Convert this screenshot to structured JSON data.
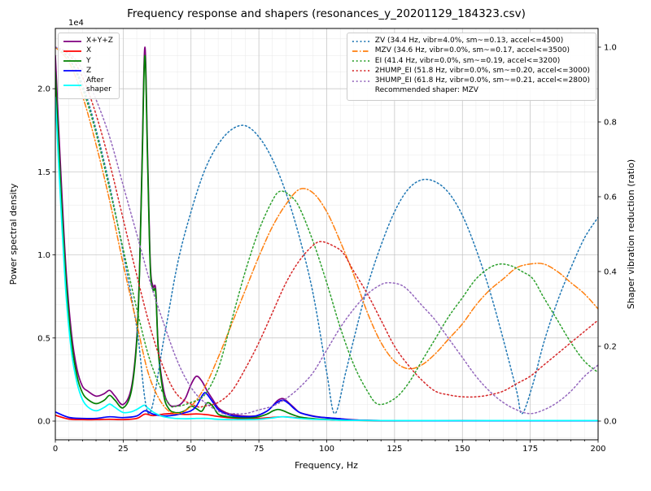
{
  "chart_data": {
    "type": "line",
    "title": "Frequency response and shapers (resonances_y_20201129_184323.csv)",
    "xlabel": "Frequency, Hz",
    "ylabel": "Power spectral density",
    "ylabel2": "Shaper vibration reduction (ratio)",
    "y_offset_text": "1e4",
    "xlim": [
      0,
      200
    ],
    "ylim_left": [
      -1125,
      23625
    ],
    "ylim_right": [
      -0.05,
      1.05
    ],
    "x_ticks": [
      0,
      25,
      50,
      75,
      100,
      125,
      150,
      175,
      200
    ],
    "y_ticks_left": {
      "values": [
        0,
        5000,
        10000,
        15000,
        20000
      ],
      "labels": [
        "0.0",
        "0.5",
        "1.0",
        "1.5",
        "2.0"
      ]
    },
    "y_ticks_right": {
      "values": [
        0,
        0.2,
        0.4,
        0.6,
        0.8,
        1.0
      ],
      "labels": [
        "0.0",
        "0.2",
        "0.4",
        "0.6",
        "0.8",
        "1.0"
      ]
    },
    "recommended_shaper_label": "Recommended shaper: MZV",
    "psd_series": [
      {
        "name": "X+Y+Z",
        "legend_label": "X+Y+Z",
        "color": "#800080",
        "style": "solid",
        "x": [
          0,
          2,
          4,
          6,
          8,
          10,
          12,
          15,
          18,
          20,
          22,
          25,
          28,
          30,
          31,
          32,
          33,
          34,
          35,
          36,
          37,
          38,
          40,
          42,
          44,
          46,
          48,
          50,
          52,
          54,
          56,
          58,
          60,
          63,
          66,
          70,
          74,
          78,
          80,
          82,
          84,
          86,
          88,
          90,
          93,
          96,
          100,
          104,
          108,
          112,
          116,
          120,
          130,
          140,
          150,
          160,
          170,
          180,
          190,
          200
        ],
        "y": [
          22000,
          15000,
          9000,
          5200,
          3100,
          2100,
          1800,
          1500,
          1650,
          1850,
          1500,
          1000,
          2000,
          5000,
          9000,
          16000,
          22500,
          16000,
          9500,
          8100,
          7900,
          4300,
          1800,
          1000,
          900,
          1000,
          1400,
          2200,
          2700,
          2400,
          1800,
          1300,
          800,
          500,
          380,
          300,
          320,
          600,
          900,
          1250,
          1350,
          1100,
          800,
          520,
          380,
          280,
          200,
          150,
          100,
          60,
          45,
          35,
          25,
          20,
          20,
          20,
          20,
          20,
          20,
          20
        ]
      },
      {
        "name": "X",
        "legend_label": "X",
        "color": "#ff0000",
        "style": "solid",
        "x": [
          0,
          5,
          10,
          15,
          20,
          25,
          30,
          33,
          36,
          40,
          44,
          48,
          52,
          56,
          60,
          65,
          70,
          75,
          80,
          84,
          88,
          92,
          96,
          100,
          105,
          110,
          120,
          140,
          160,
          180,
          200
        ],
        "y": [
          350,
          120,
          90,
          90,
          110,
          90,
          160,
          420,
          330,
          420,
          450,
          400,
          430,
          380,
          280,
          190,
          150,
          160,
          220,
          260,
          210,
          150,
          120,
          100,
          60,
          40,
          30,
          20,
          20,
          20,
          20
        ]
      },
      {
        "name": "Y",
        "legend_label": "Y",
        "color": "#008000",
        "style": "solid",
        "x": [
          0,
          2,
          4,
          6,
          8,
          10,
          12,
          15,
          18,
          20,
          22,
          25,
          28,
          30,
          31,
          32,
          33,
          34,
          35,
          36,
          37,
          38,
          40,
          42,
          44,
          46,
          48,
          50,
          52,
          54,
          56,
          58,
          60,
          63,
          66,
          70,
          74,
          78,
          80,
          82,
          84,
          86,
          88,
          90,
          93,
          96,
          100,
          104,
          108,
          112,
          116,
          120,
          130,
          140,
          150,
          160,
          170,
          180,
          190,
          200
        ],
        "y": [
          21000,
          14000,
          8300,
          4700,
          2700,
          1700,
          1300,
          1050,
          1250,
          1550,
          1250,
          800,
          1800,
          4800,
          8800,
          15500,
          22000,
          15500,
          9200,
          7900,
          7700,
          4100,
          1500,
          700,
          520,
          520,
          650,
          900,
          750,
          600,
          1100,
          900,
          420,
          280,
          220,
          200,
          230,
          420,
          600,
          700,
          620,
          480,
          350,
          250,
          180,
          130,
          100,
          70,
          50,
          40,
          35,
          30,
          25,
          20,
          20,
          20,
          20,
          20,
          20,
          20
        ]
      },
      {
        "name": "Z",
        "legend_label": "Z",
        "color": "#0000ff",
        "style": "solid",
        "x": [
          0,
          5,
          10,
          15,
          20,
          25,
          30,
          33,
          36,
          40,
          44,
          48,
          50,
          52,
          54,
          55,
          56,
          58,
          60,
          63,
          66,
          70,
          74,
          78,
          80,
          82,
          84,
          86,
          88,
          90,
          93,
          96,
          100,
          104,
          108,
          112,
          120,
          140,
          160,
          180,
          200
        ],
        "y": [
          550,
          220,
          160,
          160,
          260,
          210,
          310,
          620,
          420,
          310,
          360,
          520,
          620,
          900,
          1500,
          1700,
          1600,
          1150,
          700,
          420,
          300,
          260,
          310,
          600,
          900,
          1150,
          1250,
          1050,
          750,
          520,
          360,
          260,
          200,
          150,
          80,
          50,
          30,
          20,
          20,
          20,
          20
        ]
      },
      {
        "name": "After shaper",
        "legend_label": "After\nshaper",
        "color": "#00ffff",
        "style": "solid",
        "x": [
          0,
          2,
          4,
          6,
          8,
          10,
          12,
          15,
          18,
          20,
          22,
          25,
          28,
          30,
          32,
          33,
          34,
          36,
          38,
          40,
          44,
          48,
          52,
          56,
          60,
          65,
          70,
          75,
          80,
          83,
          86,
          90,
          95,
          100,
          105,
          110,
          120,
          140,
          160,
          180,
          200
        ],
        "y": [
          19500,
          13000,
          7500,
          4100,
          2300,
          1300,
          850,
          620,
          820,
          1020,
          820,
          520,
          560,
          700,
          900,
          950,
          800,
          550,
          380,
          260,
          160,
          140,
          160,
          160,
          110,
          90,
          90,
          110,
          190,
          260,
          230,
          160,
          110,
          85,
          55,
          45,
          35,
          28,
          28,
          28,
          28
        ]
      }
    ],
    "shaper_series": [
      {
        "name": "ZV",
        "legend_label": "ZV (34.4 Hz, vibr=4.0%, sm~=0.13, accel<=4500)",
        "color": "#1f77b4",
        "style": "dotted",
        "x": [
          0,
          5,
          10,
          15,
          20,
          25,
          30,
          34.4,
          40,
          45,
          50,
          55,
          60,
          65,
          70,
          75,
          80,
          85,
          90,
          95,
          100,
          103,
          107,
          110,
          115,
          120,
          125,
          130,
          135,
          140,
          145,
          150,
          155,
          160,
          165,
          170,
          172,
          176,
          180,
          185,
          190,
          195,
          200
        ],
        "y": [
          1.0,
          0.97,
          0.9,
          0.78,
          0.63,
          0.45,
          0.25,
          0.02,
          0.22,
          0.42,
          0.56,
          0.67,
          0.74,
          0.78,
          0.79,
          0.76,
          0.7,
          0.61,
          0.49,
          0.34,
          0.13,
          0.02,
          0.13,
          0.22,
          0.36,
          0.47,
          0.56,
          0.62,
          0.645,
          0.64,
          0.61,
          0.55,
          0.46,
          0.35,
          0.22,
          0.08,
          0.02,
          0.1,
          0.21,
          0.32,
          0.41,
          0.49,
          0.545
        ]
      },
      {
        "name": "MZV",
        "legend_label": "MZV (34.6 Hz, vibr=0.0%, sm~=0.17, accel<=3500)",
        "color": "#ff7f0e",
        "style": "dashdot",
        "x": [
          0,
          5,
          10,
          15,
          20,
          25,
          30,
          34.6,
          40,
          45,
          50,
          55,
          60,
          65,
          70,
          75,
          80,
          85,
          90,
          95,
          100,
          105,
          110,
          115,
          120,
          125,
          130,
          135,
          140,
          145,
          150,
          155,
          160,
          165,
          170,
          175,
          180,
          185,
          190,
          195,
          200
        ],
        "y": [
          1.0,
          0.96,
          0.87,
          0.74,
          0.59,
          0.42,
          0.26,
          0.12,
          0.04,
          0.02,
          0.04,
          0.09,
          0.17,
          0.26,
          0.35,
          0.44,
          0.52,
          0.58,
          0.62,
          0.61,
          0.56,
          0.48,
          0.39,
          0.29,
          0.21,
          0.16,
          0.14,
          0.15,
          0.18,
          0.22,
          0.26,
          0.31,
          0.35,
          0.38,
          0.41,
          0.42,
          0.42,
          0.4,
          0.37,
          0.34,
          0.3
        ]
      },
      {
        "name": "EI",
        "legend_label": "EI (41.4 Hz, vibr=0.0%, sm~=0.19, accel<=3200)",
        "color": "#2ca02c",
        "style": "dotted",
        "x": [
          0,
          5,
          10,
          15,
          20,
          25,
          30,
          35,
          41.4,
          45,
          50,
          55,
          60,
          65,
          70,
          75,
          80,
          83,
          87,
          90,
          95,
          100,
          105,
          110,
          115,
          119,
          125,
          130,
          135,
          140,
          145,
          150,
          155,
          160,
          164,
          168,
          172,
          176,
          180,
          185,
          190,
          195,
          200
        ],
        "y": [
          1.0,
          0.97,
          0.89,
          0.77,
          0.62,
          0.46,
          0.3,
          0.16,
          0.05,
          0.04,
          0.05,
          0.07,
          0.14,
          0.27,
          0.4,
          0.51,
          0.59,
          0.615,
          0.6,
          0.57,
          0.48,
          0.37,
          0.25,
          0.15,
          0.08,
          0.045,
          0.06,
          0.1,
          0.16,
          0.22,
          0.28,
          0.33,
          0.38,
          0.41,
          0.42,
          0.415,
          0.4,
          0.38,
          0.33,
          0.27,
          0.21,
          0.16,
          0.13
        ]
      },
      {
        "name": "2HUMP_EI",
        "legend_label": "2HUMP_EI (51.8 Hz, vibr=0.0%, sm~=0.20, accel<=3000)",
        "color": "#d62728",
        "style": "dotted",
        "x": [
          0,
          5,
          10,
          15,
          20,
          25,
          30,
          35,
          40,
          45,
          51.8,
          55,
          60,
          65,
          70,
          75,
          80,
          85,
          90,
          95,
          98,
          102,
          106,
          110,
          115,
          120,
          125,
          130,
          135,
          140,
          145,
          150,
          155,
          160,
          165,
          170,
          175,
          180,
          185,
          190,
          195,
          200
        ],
        "y": [
          1.0,
          0.98,
          0.92,
          0.82,
          0.69,
          0.54,
          0.39,
          0.25,
          0.14,
          0.07,
          0.04,
          0.04,
          0.05,
          0.08,
          0.14,
          0.21,
          0.29,
          0.37,
          0.43,
          0.47,
          0.48,
          0.47,
          0.45,
          0.4,
          0.34,
          0.27,
          0.2,
          0.15,
          0.11,
          0.08,
          0.07,
          0.065,
          0.065,
          0.07,
          0.08,
          0.1,
          0.12,
          0.15,
          0.18,
          0.21,
          0.24,
          0.27
        ]
      },
      {
        "name": "3HUMP_EI",
        "legend_label": "3HUMP_EI (61.8 Hz, vibr=0.0%, sm~=0.21, accel<=2800)",
        "color": "#9467bd",
        "style": "dotted",
        "x": [
          0,
          5,
          10,
          15,
          20,
          25,
          30,
          35,
          40,
          45,
          50,
          55,
          61.8,
          65,
          70,
          75,
          80,
          85,
          90,
          95,
          100,
          105,
          110,
          115,
          120,
          123,
          127,
          130,
          135,
          140,
          145,
          150,
          155,
          160,
          165,
          170,
          175,
          180,
          185,
          190,
          195,
          200
        ],
        "y": [
          1.0,
          0.985,
          0.94,
          0.86,
          0.76,
          0.63,
          0.5,
          0.37,
          0.26,
          0.16,
          0.09,
          0.05,
          0.02,
          0.02,
          0.02,
          0.03,
          0.04,
          0.06,
          0.09,
          0.13,
          0.19,
          0.25,
          0.3,
          0.34,
          0.365,
          0.37,
          0.365,
          0.35,
          0.31,
          0.27,
          0.22,
          0.17,
          0.12,
          0.08,
          0.05,
          0.03,
          0.02,
          0.03,
          0.05,
          0.08,
          0.12,
          0.15
        ]
      }
    ]
  }
}
